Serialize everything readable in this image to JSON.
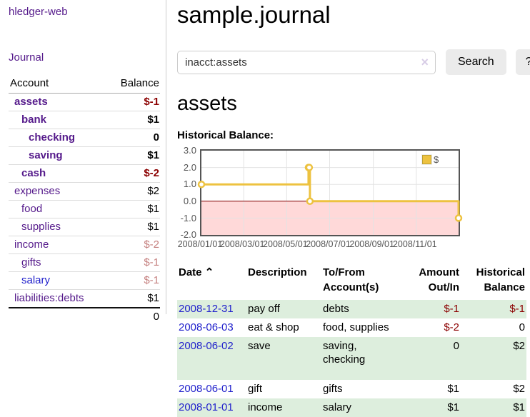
{
  "colors": {
    "link_purple": "#551A8B",
    "link_blue": "#2222CC",
    "negative_strong": "#8B0000",
    "negative_muted": "#C5807F",
    "row_green": "#DDEEDD",
    "chart_line_yellow": "#EDC240",
    "chart_negative_fill": "#FFD9D9",
    "chart_zero_line": "#8B0000",
    "chart_border": "#545454",
    "button_bg": "#EBEBEB"
  },
  "sidebar": {
    "app_title": "hledger-web",
    "journal_link": "Journal",
    "accounts_table": {
      "headers": {
        "account": "Account",
        "balance": "Balance"
      },
      "rows": [
        {
          "name": "assets",
          "balance": "$-1"
        },
        {
          "name": "bank",
          "balance": "$1"
        },
        {
          "name": "checking",
          "balance": "0"
        },
        {
          "name": "saving",
          "balance": "$1"
        },
        {
          "name": "cash",
          "balance": "$-2"
        },
        {
          "name": "expenses",
          "balance": "$2"
        },
        {
          "name": "food",
          "balance": "$1"
        },
        {
          "name": "supplies",
          "balance": "$1"
        },
        {
          "name": "income",
          "balance": "$-2"
        },
        {
          "name": "gifts",
          "balance": "$-1"
        },
        {
          "name": "salary",
          "balance": "$-1"
        },
        {
          "name": "liabilities:debts",
          "balance": "$1"
        }
      ],
      "total": "0"
    }
  },
  "main": {
    "title": "sample.journal",
    "search": {
      "value": "inacct:assets",
      "clear_icon": "×",
      "search_label": "Search",
      "help_label": "?"
    },
    "account_heading": "assets",
    "chart_heading": "Historical Balance:"
  },
  "chart_data": {
    "type": "line",
    "title": "Historical Balance:",
    "steps": true,
    "ylim": [
      -2.0,
      3.0
    ],
    "yticks": [
      "3.0",
      "2.0",
      "1.0",
      "0.0",
      "-1.0",
      "-2.0"
    ],
    "xticks": [
      "2008/01/01",
      "2008/03/01",
      "2008/05/01",
      "2008/07/01",
      "2008/09/01",
      "2008/11/01"
    ],
    "grid": true,
    "legend": {
      "label": "$",
      "position": "top-right"
    },
    "negative_region_fill": "#FFD9D9",
    "series": [
      {
        "name": "$",
        "color": "#EDC240",
        "points": [
          {
            "x": "2008/01/01",
            "y": 1
          },
          {
            "x": "2008/06/01",
            "y": 2
          },
          {
            "x": "2008/06/02",
            "y": 2
          },
          {
            "x": "2008/06/03",
            "y": 0
          },
          {
            "x": "2008/12/31",
            "y": -1
          }
        ]
      }
    ]
  },
  "transactions": {
    "headers": {
      "date": "Date",
      "sort_icon": "⌃",
      "description": "Description",
      "account_line1": "To/From",
      "account_line2": "Account(s)",
      "amount_line1": "Amount",
      "amount_line2": "Out/In",
      "balance_line1": "Historical",
      "balance_line2": "Balance"
    },
    "rows": [
      {
        "date": "2008-12-31",
        "description": "pay off",
        "accounts": "debts",
        "amount": "$-1",
        "balance": "$-1"
      },
      {
        "date": "2008-06-03",
        "description": "eat & shop",
        "accounts": "food, supplies",
        "amount": "$-2",
        "balance": "0"
      },
      {
        "date": "2008-06-02",
        "description": "save",
        "accounts": "saving,\nchecking",
        "amount": "0",
        "balance": "$2"
      },
      {
        "date": "2008-06-01",
        "description": "gift",
        "accounts": "gifts",
        "amount": "$1",
        "balance": "$2"
      },
      {
        "date": "2008-01-01",
        "description": "income",
        "accounts": "salary",
        "amount": "$1",
        "balance": "$1"
      }
    ]
  }
}
